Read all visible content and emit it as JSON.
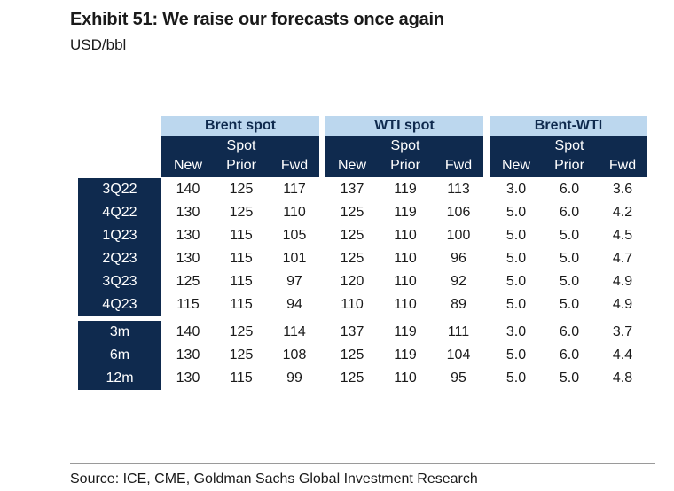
{
  "title": "Exhibit 51: We raise our forecasts once again",
  "subtitle": "USD/bbl",
  "groups": [
    "Brent spot",
    "WTI spot",
    "Brent-WTI"
  ],
  "spot_label": "Spot",
  "columns": [
    "New",
    "Prior",
    "Fwd"
  ],
  "quarterly": [
    {
      "label": "3Q22",
      "values": [
        "140",
        "125",
        "117",
        "137",
        "119",
        "113",
        "3.0",
        "6.0",
        "3.6"
      ]
    },
    {
      "label": "4Q22",
      "values": [
        "130",
        "125",
        "110",
        "125",
        "119",
        "106",
        "5.0",
        "6.0",
        "4.2"
      ]
    },
    {
      "label": "1Q23",
      "values": [
        "130",
        "115",
        "105",
        "125",
        "110",
        "100",
        "5.0",
        "5.0",
        "4.5"
      ]
    },
    {
      "label": "2Q23",
      "values": [
        "130",
        "115",
        "101",
        "125",
        "110",
        "96",
        "5.0",
        "5.0",
        "4.7"
      ]
    },
    {
      "label": "3Q23",
      "values": [
        "125",
        "115",
        "97",
        "120",
        "110",
        "92",
        "5.0",
        "5.0",
        "4.9"
      ]
    },
    {
      "label": "4Q23",
      "values": [
        "115",
        "115",
        "94",
        "110",
        "110",
        "89",
        "5.0",
        "5.0",
        "4.9"
      ]
    }
  ],
  "horizons": [
    {
      "label": "3m",
      "values": [
        "140",
        "125",
        "114",
        "137",
        "119",
        "111",
        "3.0",
        "6.0",
        "3.7"
      ]
    },
    {
      "label": "6m",
      "values": [
        "130",
        "125",
        "108",
        "125",
        "119",
        "104",
        "5.0",
        "6.0",
        "4.4"
      ]
    },
    {
      "label": "12m",
      "values": [
        "130",
        "115",
        "99",
        "125",
        "110",
        "95",
        "5.0",
        "5.0",
        "4.8"
      ]
    }
  ],
  "source": "Source: ICE, CME, Goldman Sachs Global Investment Research"
}
